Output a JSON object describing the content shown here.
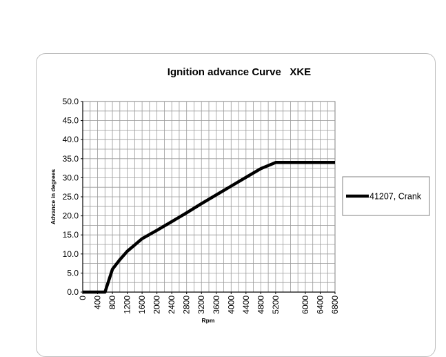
{
  "chart_data": {
    "type": "line",
    "title": "Ignition advance Curve   XKE",
    "xlabel": "Rpm",
    "ylabel": "Advance in degrees",
    "x_ticks": [
      "0",
      "400",
      "800",
      "1200",
      "1600",
      "2000",
      "2400",
      "2800",
      "3200",
      "3600",
      "4000",
      "4400",
      "4800",
      "5200",
      "6000",
      "6400",
      "6800"
    ],
    "xlim": [
      0,
      6800
    ],
    "ylim": [
      0,
      50
    ],
    "y_ticks": [
      "0.0",
      "5.0",
      "10.0",
      "15.0",
      "20.0",
      "25.0",
      "30.0",
      "35.0",
      "40.0",
      "45.0",
      "50.0"
    ],
    "grid": true,
    "legend_position": "right",
    "series": [
      {
        "name": "41207, Crank",
        "color": "#000000",
        "x": [
          0,
          400,
          600,
          800,
          1000,
          1200,
          1600,
          2000,
          2400,
          2800,
          3200,
          3600,
          4000,
          4400,
          4800,
          5200,
          5600,
          6000,
          6400,
          6800
        ],
        "y": [
          0,
          0,
          0,
          6,
          8.5,
          10.7,
          14,
          16.2,
          18.5,
          20.8,
          23.2,
          25.5,
          27.8,
          30.1,
          32.4,
          34,
          34,
          34,
          34,
          34
        ]
      }
    ]
  }
}
